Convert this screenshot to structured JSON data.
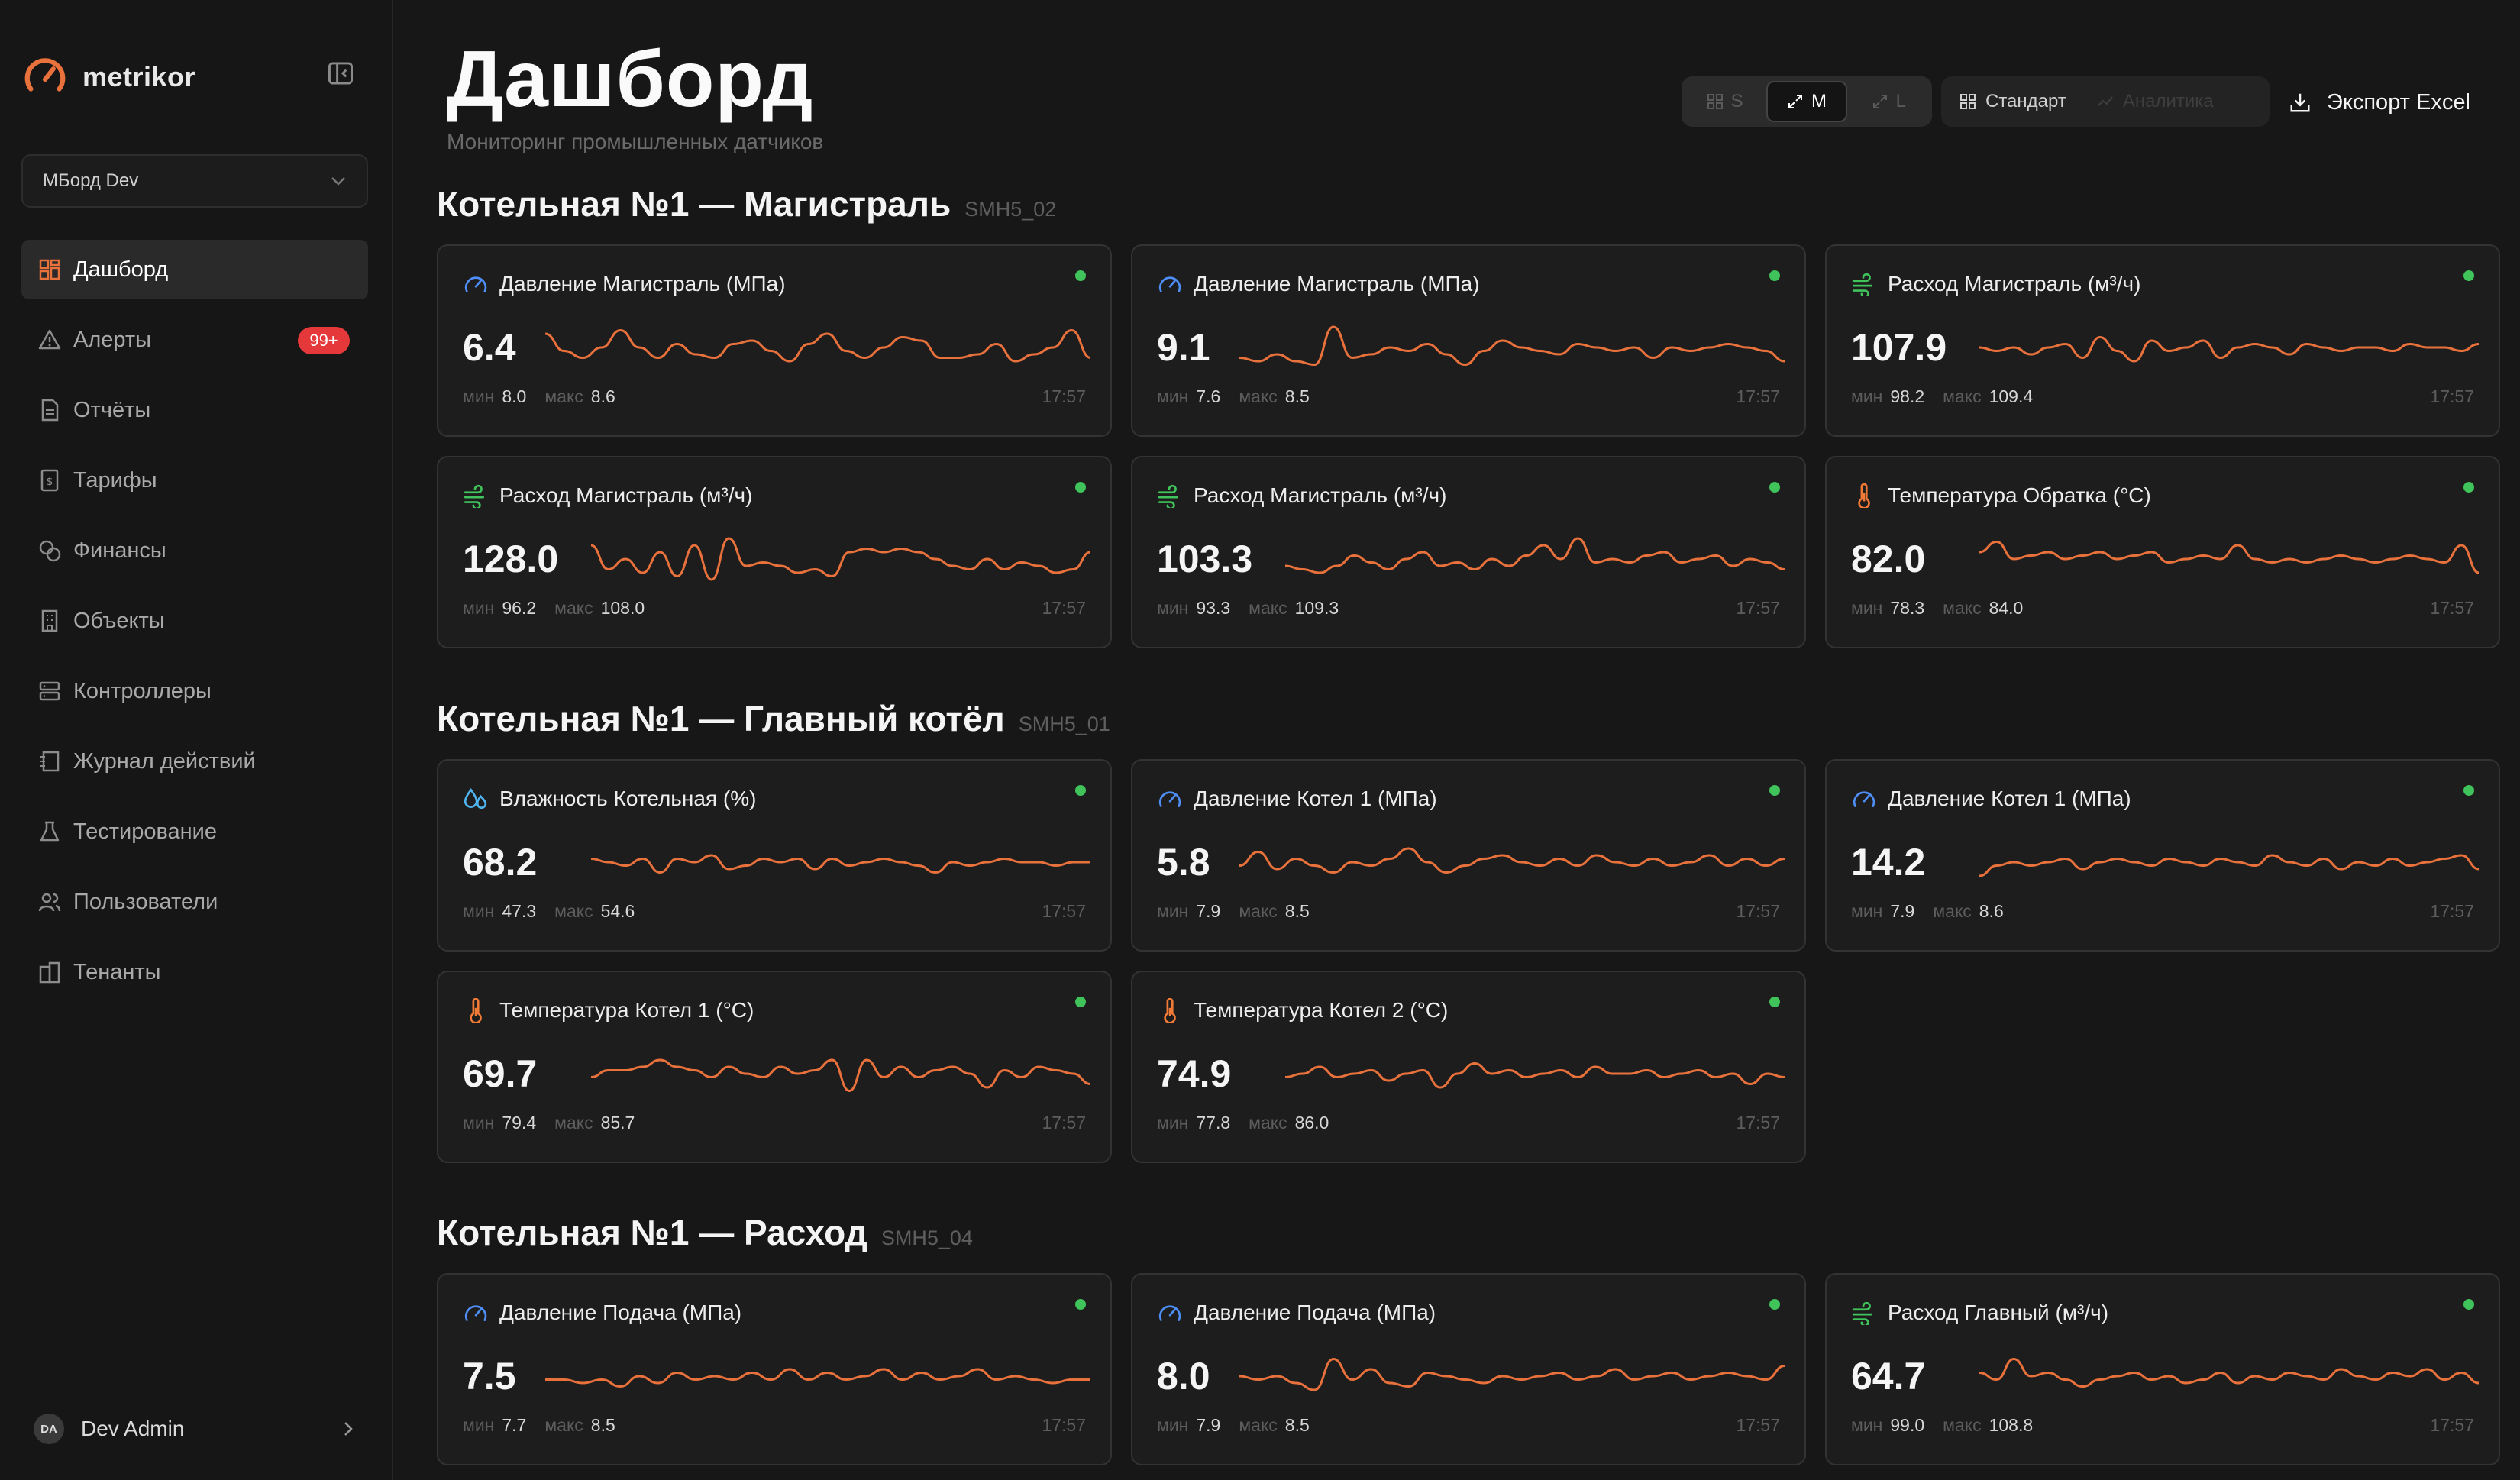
{
  "sidebar": {
    "brand": "metrikor",
    "workspace": "МБорд Dev",
    "nav": [
      {
        "label": "Дашборд",
        "icon": "dashboard-icon",
        "active": true
      },
      {
        "label": "Алерты",
        "icon": "alert-icon",
        "badge": "99+"
      },
      {
        "label": "Отчёты",
        "icon": "report-icon"
      },
      {
        "label": "Тарифы",
        "icon": "tariff-icon"
      },
      {
        "label": "Финансы",
        "icon": "finance-icon"
      },
      {
        "label": "Объекты",
        "icon": "building-icon"
      },
      {
        "label": "Контроллеры",
        "icon": "server-icon"
      },
      {
        "label": "Журнал действий",
        "icon": "journal-icon"
      },
      {
        "label": "Тестирование",
        "icon": "flask-icon"
      },
      {
        "label": "Пользователи",
        "icon": "users-icon"
      },
      {
        "label": "Тенанты",
        "icon": "tenant-icon"
      }
    ],
    "user": {
      "initials": "DA",
      "name": "Dev Admin"
    }
  },
  "header": {
    "title": "Дашборд",
    "subtitle": "Мониторинг промышленных датчиков",
    "sizes": [
      "S",
      "M",
      "L"
    ],
    "active_size": "M",
    "views": [
      "Стандарт",
      "Аналитика"
    ],
    "export_label": "Экспорт Excel"
  },
  "colors": {
    "accent": "#e8713c",
    "pressure_icon": "#4f8ef7",
    "flow_icon": "#3fc35a",
    "temp_icon": "#f07a36",
    "humidity_icon": "#4fb3f0",
    "status_ok": "#3fc35a",
    "badge": "#e5383b"
  },
  "sections": [
    {
      "title": "Котельная №1 — Магистраль",
      "code": "SMH5_02",
      "cards": [
        {
          "title": "Давление Магистраль (МПа)",
          "icon": "gauge-icon",
          "value": "6.4",
          "min_label": "мин",
          "min": "8.0",
          "max_label": "макс",
          "max": "8.6",
          "time": "17:57",
          "series": [
            0.7,
            0.45,
            0.35,
            0.5,
            0.75,
            0.5,
            0.35,
            0.55,
            0.4,
            0.35,
            0.55,
            0.6,
            0.45,
            0.3,
            0.55,
            0.7,
            0.45,
            0.35,
            0.5,
            0.65,
            0.6,
            0.35,
            0.35,
            0.4,
            0.55,
            0.3,
            0.4,
            0.5,
            0.75,
            0.35
          ]
        },
        {
          "title": "Давление Магистраль (МПа)",
          "icon": "gauge-icon",
          "value": "9.1",
          "min_label": "мин",
          "min": "7.6",
          "max_label": "макс",
          "max": "8.5",
          "time": "17:57",
          "series": [
            0.35,
            0.3,
            0.4,
            0.3,
            0.25,
            0.8,
            0.35,
            0.4,
            0.5,
            0.45,
            0.55,
            0.4,
            0.25,
            0.45,
            0.6,
            0.5,
            0.45,
            0.4,
            0.55,
            0.5,
            0.45,
            0.5,
            0.35,
            0.5,
            0.45,
            0.5,
            0.55,
            0.5,
            0.45,
            0.3
          ]
        },
        {
          "title": "Расход Магистраль (м³/ч)",
          "icon": "wind-icon",
          "value": "107.9",
          "min_label": "мин",
          "min": "98.2",
          "max_label": "макс",
          "max": "109.4",
          "time": "17:57",
          "series": [
            0.5,
            0.45,
            0.5,
            0.4,
            0.5,
            0.55,
            0.35,
            0.65,
            0.45,
            0.3,
            0.6,
            0.45,
            0.5,
            0.6,
            0.35,
            0.5,
            0.55,
            0.5,
            0.4,
            0.55,
            0.5,
            0.45,
            0.5,
            0.5,
            0.45,
            0.55,
            0.5,
            0.5,
            0.45,
            0.55
          ]
        }
      ]
    },
    {
      "title": "",
      "code": "",
      "cards": [
        {
          "title": "Расход Магистраль (м³/ч)",
          "icon": "wind-icon",
          "value": "128.0",
          "min_label": "мин",
          "min": "96.2",
          "max_label": "макс",
          "max": "108.0",
          "time": "17:57",
          "series": [
            0.7,
            0.35,
            0.5,
            0.3,
            0.6,
            0.25,
            0.7,
            0.2,
            0.8,
            0.4,
            0.45,
            0.4,
            0.3,
            0.35,
            0.25,
            0.6,
            0.65,
            0.6,
            0.65,
            0.6,
            0.5,
            0.4,
            0.35,
            0.5,
            0.35,
            0.45,
            0.4,
            0.3,
            0.35,
            0.6
          ]
        },
        {
          "title": "Расход Магистраль (м³/ч)",
          "icon": "wind-icon",
          "value": "103.3",
          "min_label": "мин",
          "min": "93.3",
          "max_label": "макс",
          "max": "109.3",
          "time": "17:57",
          "series": [
            0.4,
            0.35,
            0.3,
            0.4,
            0.55,
            0.45,
            0.35,
            0.5,
            0.6,
            0.4,
            0.45,
            0.35,
            0.5,
            0.4,
            0.55,
            0.7,
            0.5,
            0.8,
            0.45,
            0.5,
            0.45,
            0.55,
            0.6,
            0.45,
            0.5,
            0.55,
            0.4,
            0.5,
            0.45,
            0.35
          ]
        },
        {
          "title": "Температура Обратка (°C)",
          "icon": "thermometer-icon",
          "value": "82.0",
          "min_label": "мин",
          "min": "78.3",
          "max_label": "макс",
          "max": "84.0",
          "time": "17:57",
          "series": [
            0.6,
            0.75,
            0.5,
            0.55,
            0.6,
            0.5,
            0.55,
            0.6,
            0.5,
            0.55,
            0.6,
            0.45,
            0.5,
            0.55,
            0.5,
            0.7,
            0.5,
            0.45,
            0.5,
            0.45,
            0.5,
            0.55,
            0.5,
            0.45,
            0.5,
            0.55,
            0.5,
            0.45,
            0.7,
            0.3
          ]
        }
      ]
    },
    {
      "title": "Котельная №1 — Главный котёл",
      "code": "SMH5_01",
      "cards": [
        {
          "title": "Влажность Котельная (%)",
          "icon": "droplets-icon",
          "value": "68.2",
          "min_label": "мин",
          "min": "47.3",
          "max_label": "макс",
          "max": "54.6",
          "time": "17:57",
          "series": [
            0.55,
            0.5,
            0.45,
            0.55,
            0.35,
            0.55,
            0.5,
            0.6,
            0.4,
            0.45,
            0.55,
            0.5,
            0.55,
            0.4,
            0.55,
            0.45,
            0.5,
            0.55,
            0.5,
            0.45,
            0.35,
            0.5,
            0.45,
            0.5,
            0.55,
            0.5,
            0.5,
            0.45,
            0.5,
            0.5
          ]
        },
        {
          "title": "Давление Котел 1 (МПа)",
          "icon": "gauge-icon",
          "value": "5.8",
          "min_label": "мин",
          "min": "7.9",
          "max_label": "макс",
          "max": "8.5",
          "time": "17:57",
          "series": [
            0.45,
            0.65,
            0.4,
            0.55,
            0.45,
            0.35,
            0.5,
            0.45,
            0.55,
            0.7,
            0.5,
            0.35,
            0.45,
            0.55,
            0.6,
            0.5,
            0.45,
            0.55,
            0.45,
            0.6,
            0.5,
            0.45,
            0.55,
            0.45,
            0.5,
            0.6,
            0.45,
            0.55,
            0.45,
            0.55
          ]
        },
        {
          "title": "Давление Котел 1 (МПа)",
          "icon": "gauge-icon",
          "value": "14.2",
          "min_label": "мин",
          "min": "7.9",
          "max_label": "макс",
          "max": "8.6",
          "time": "17:57",
          "series": [
            0.3,
            0.45,
            0.5,
            0.45,
            0.5,
            0.55,
            0.4,
            0.5,
            0.55,
            0.5,
            0.45,
            0.55,
            0.5,
            0.45,
            0.55,
            0.5,
            0.45,
            0.6,
            0.5,
            0.45,
            0.55,
            0.4,
            0.5,
            0.45,
            0.55,
            0.45,
            0.5,
            0.55,
            0.6,
            0.4
          ]
        }
      ]
    },
    {
      "title": "",
      "code": "",
      "cards": [
        {
          "title": "Температура Котел 1 (°C)",
          "icon": "thermometer-icon",
          "value": "69.7",
          "min_label": "мин",
          "min": "79.4",
          "max_label": "макс",
          "max": "85.7",
          "time": "17:57",
          "series": [
            0.45,
            0.55,
            0.55,
            0.6,
            0.7,
            0.6,
            0.55,
            0.45,
            0.6,
            0.5,
            0.45,
            0.6,
            0.5,
            0.55,
            0.7,
            0.25,
            0.7,
            0.45,
            0.6,
            0.45,
            0.55,
            0.6,
            0.5,
            0.3,
            0.55,
            0.45,
            0.6,
            0.55,
            0.5,
            0.35
          ]
        },
        {
          "title": "Температура Котел 2 (°C)",
          "icon": "thermometer-icon",
          "value": "74.9",
          "min_label": "мин",
          "min": "77.8",
          "max_label": "макс",
          "max": "86.0",
          "time": "17:57",
          "series": [
            0.45,
            0.5,
            0.6,
            0.45,
            0.5,
            0.55,
            0.4,
            0.5,
            0.55,
            0.3,
            0.5,
            0.65,
            0.5,
            0.55,
            0.45,
            0.5,
            0.55,
            0.45,
            0.6,
            0.5,
            0.5,
            0.55,
            0.45,
            0.5,
            0.55,
            0.45,
            0.5,
            0.35,
            0.5,
            0.45
          ]
        }
      ]
    },
    {
      "title": "Котельная №1 — Расход",
      "code": "SMH5_04",
      "cards": [
        {
          "title": "Давление Подача (МПа)",
          "icon": "gauge-icon",
          "value": "7.5",
          "min_label": "мин",
          "min": "7.7",
          "max_label": "макс",
          "max": "8.5",
          "time": "17:57",
          "series": [
            0.45,
            0.45,
            0.4,
            0.45,
            0.35,
            0.5,
            0.4,
            0.55,
            0.45,
            0.5,
            0.45,
            0.55,
            0.45,
            0.6,
            0.45,
            0.55,
            0.45,
            0.5,
            0.6,
            0.45,
            0.55,
            0.45,
            0.5,
            0.6,
            0.45,
            0.5,
            0.45,
            0.4,
            0.45,
            0.45
          ]
        },
        {
          "title": "Давление Подача (МПа)",
          "icon": "gauge-icon",
          "value": "8.0",
          "min_label": "мин",
          "min": "7.9",
          "max_label": "макс",
          "max": "8.5",
          "time": "17:57",
          "series": [
            0.5,
            0.45,
            0.5,
            0.4,
            0.3,
            0.75,
            0.45,
            0.6,
            0.4,
            0.35,
            0.55,
            0.5,
            0.45,
            0.4,
            0.5,
            0.45,
            0.5,
            0.55,
            0.45,
            0.5,
            0.6,
            0.45,
            0.5,
            0.55,
            0.45,
            0.5,
            0.55,
            0.5,
            0.45,
            0.65
          ]
        },
        {
          "title": "Расход Главный (м³/ч)",
          "icon": "wind-icon",
          "value": "64.7",
          "min_label": "мин",
          "min": "99.0",
          "max_label": "макс",
          "max": "108.8",
          "time": "17:57",
          "series": [
            0.55,
            0.45,
            0.75,
            0.5,
            0.55,
            0.45,
            0.35,
            0.45,
            0.5,
            0.55,
            0.45,
            0.5,
            0.4,
            0.45,
            0.55,
            0.4,
            0.5,
            0.45,
            0.55,
            0.5,
            0.45,
            0.6,
            0.5,
            0.45,
            0.55,
            0.5,
            0.6,
            0.45,
            0.55,
            0.4
          ]
        }
      ]
    }
  ]
}
